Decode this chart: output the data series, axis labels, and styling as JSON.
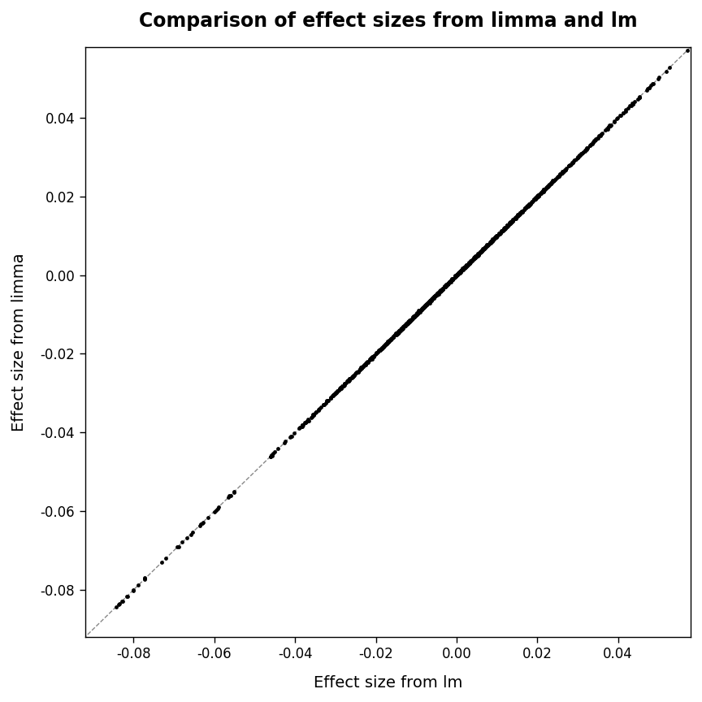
{
  "title": "Comparison of effect sizes from limma and lm",
  "xlabel": "Effect size from lm",
  "ylabel": "Effect size from limma",
  "xlim": [
    -0.092,
    0.058
  ],
  "ylim": [
    -0.092,
    0.058
  ],
  "xticks": [
    -0.08,
    -0.06,
    -0.04,
    -0.02,
    0.0,
    0.02,
    0.04
  ],
  "yticks": [
    -0.08,
    -0.06,
    -0.04,
    -0.02,
    0.0,
    0.02,
    0.04
  ],
  "n_points": 1000,
  "seed": 7,
  "line_color": "#888888",
  "point_color": "#000000",
  "point_size": 12,
  "point_alpha": 1.0,
  "background_color": "#ffffff",
  "title_fontsize": 17,
  "label_fontsize": 14,
  "tick_fontsize": 12,
  "title_fontweight": "bold"
}
